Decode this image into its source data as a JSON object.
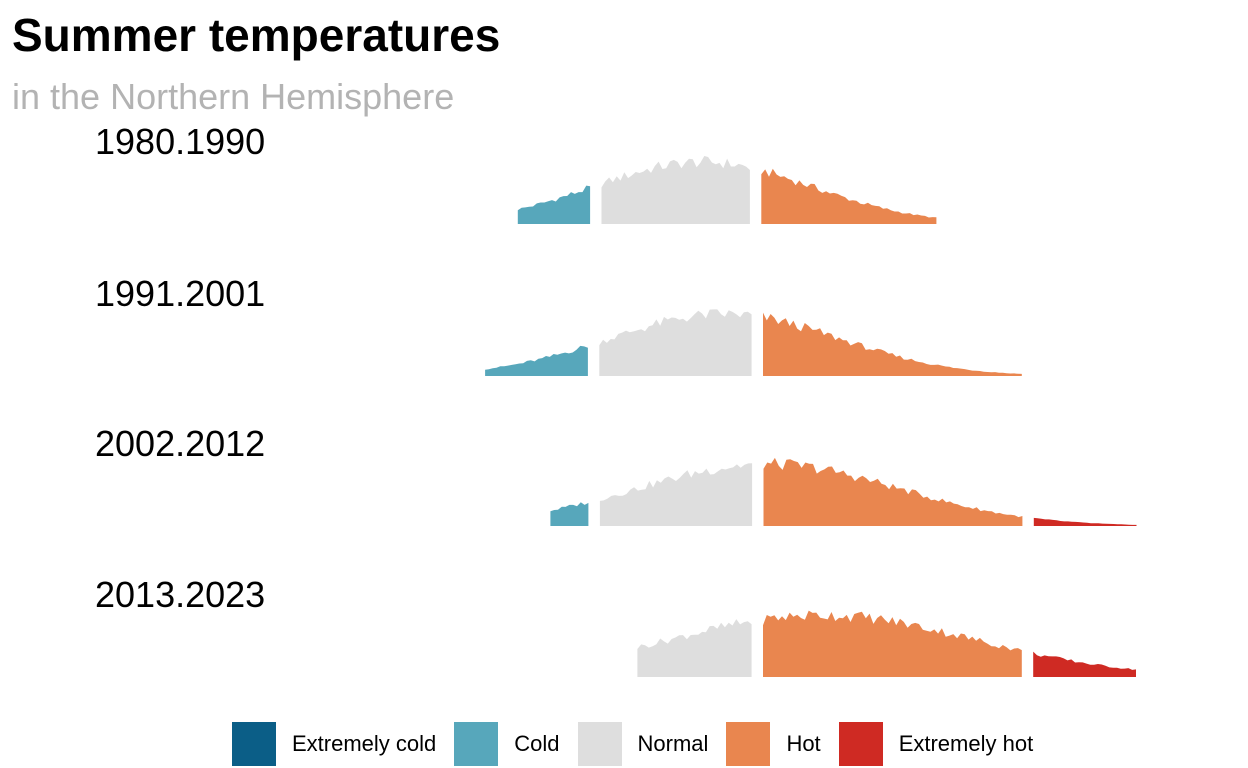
{
  "title": "Summer temperatures",
  "subtitle": "in the Northern Hemisphere",
  "chart_data": {
    "type": "area",
    "title": "Summer temperatures",
    "subtitle": "in the Northern Hemisphere",
    "xlabel": "",
    "ylabel": "",
    "grid": false,
    "legend_position": "bottom",
    "panels": [
      {
        "label": "1980.1990"
      },
      {
        "label": "1991.2001"
      },
      {
        "label": "2002.2012"
      },
      {
        "label": "2013.2023"
      }
    ],
    "categories": [
      {
        "name": "Extremely cold",
        "color": "#0b5e87"
      },
      {
        "name": "Cold",
        "color": "#57a7bb"
      },
      {
        "name": "Normal",
        "color": "#dedede"
      },
      {
        "name": "Hot",
        "color": "#e9864f"
      },
      {
        "name": "Extremely hot",
        "color": "#cf2a23"
      }
    ],
    "x_range_sigma": [
      -3.5,
      4.5
    ],
    "category_breaks_sigma": [
      -3,
      -1,
      0.5,
      3
    ],
    "distributions": [
      {
        "label": "1980.1990",
        "mean": 0.0,
        "sd": 1.0,
        "x_min": -1.7,
        "x_max": 2.15
      },
      {
        "label": "1991.2001",
        "mean": 0.2,
        "sd": 1.05,
        "x_min": -2.0,
        "x_max": 3.0
      },
      {
        "label": "2002.2012",
        "mean": 0.6,
        "sd": 1.2,
        "x_min": -1.4,
        "x_max": 4.0
      },
      {
        "label": "2013.2023",
        "mean": 1.1,
        "sd": 1.4,
        "x_min": -0.6,
        "x_max": 4.0
      }
    ]
  }
}
